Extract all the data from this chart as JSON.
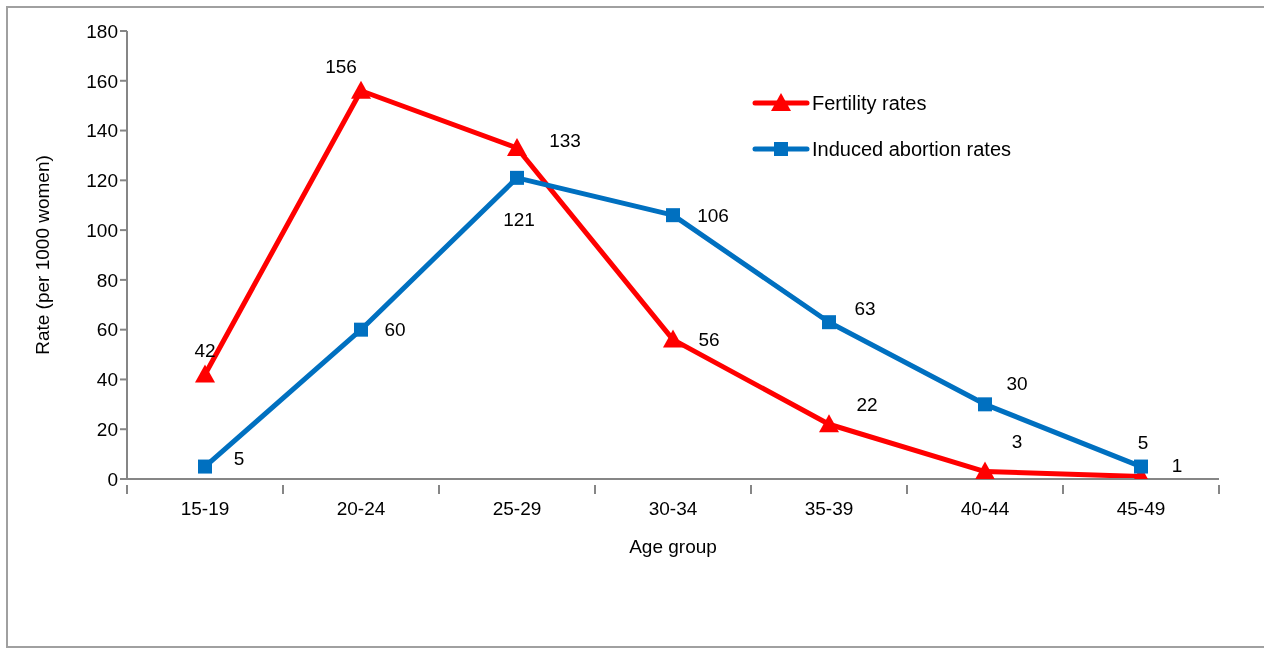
{
  "chart_data": {
    "type": "line",
    "xlabel": "Age group",
    "ylabel": "Rate (per 1000 women)",
    "categories": [
      "15-19",
      "20-24",
      "25-29",
      "30-34",
      "35-39",
      "40-44",
      "45-49"
    ],
    "series": [
      {
        "name": "Fertility rates",
        "color": "#ff0000",
        "marker": "triangle",
        "values": [
          42,
          156,
          133,
          56,
          22,
          3,
          1
        ]
      },
      {
        "name": "Induced abortion rates",
        "color": "#0070c0",
        "marker": "square",
        "values": [
          5,
          60,
          121,
          106,
          63,
          30,
          5
        ]
      }
    ],
    "ylim": [
      0,
      180
    ],
    "yticks": [
      0,
      20,
      40,
      60,
      80,
      100,
      120,
      140,
      160,
      180
    ],
    "legend": "top right",
    "data_labels": true
  }
}
